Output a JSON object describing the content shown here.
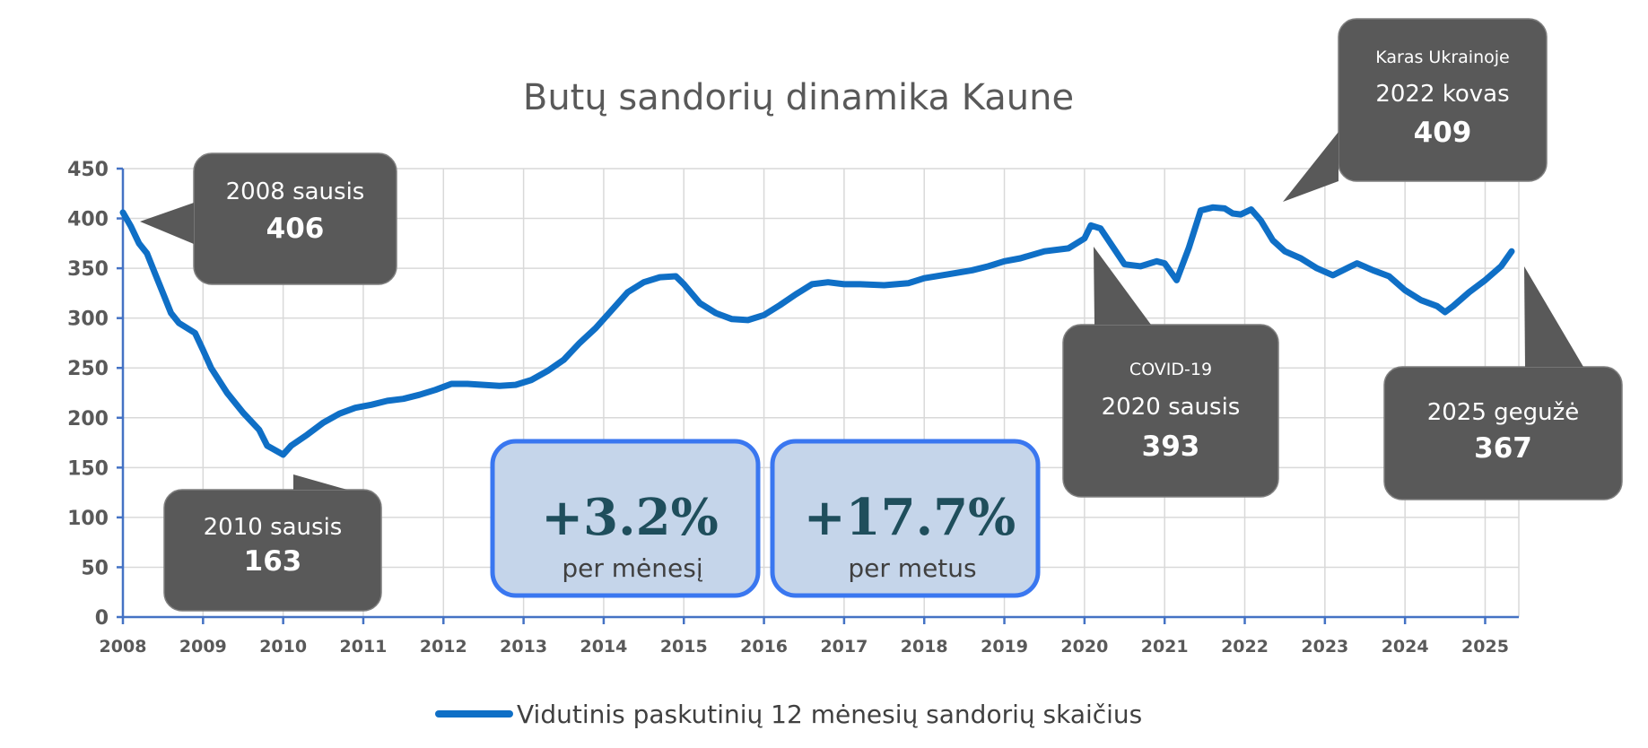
{
  "chart_data": {
    "type": "line",
    "title": "Butų sandorių dinamika Kaune",
    "xlabel": "",
    "ylabel": "",
    "xlim": [
      2008,
      2025.42
    ],
    "ylim": [
      0,
      450
    ],
    "grid": true,
    "y_ticks": [
      "0",
      "50",
      "100",
      "150",
      "200",
      "250",
      "300",
      "350",
      "400",
      "450"
    ],
    "x_ticks": [
      "2008",
      "2009",
      "2010",
      "2011",
      "2012",
      "2013",
      "2014",
      "2015",
      "2016",
      "2017",
      "2018",
      "2019",
      "2020",
      "2021",
      "2022",
      "2023",
      "2024",
      "2025"
    ],
    "legend": {
      "position": "bottom",
      "entries": [
        "Vidutinis paskutinių 12 mėnesių sandorių skaičius"
      ]
    },
    "series": [
      {
        "name": "Vidutinis paskutinių 12 mėnesių sandorių skaičius",
        "color": "#0f6fc6",
        "points": [
          [
            2008.0,
            406
          ],
          [
            2008.1,
            392
          ],
          [
            2008.2,
            375
          ],
          [
            2008.3,
            365
          ],
          [
            2008.4,
            345
          ],
          [
            2008.5,
            325
          ],
          [
            2008.6,
            305
          ],
          [
            2008.7,
            295
          ],
          [
            2008.9,
            285
          ],
          [
            2009.0,
            268
          ],
          [
            2009.1,
            250
          ],
          [
            2009.3,
            225
          ],
          [
            2009.5,
            205
          ],
          [
            2009.7,
            188
          ],
          [
            2009.8,
            172
          ],
          [
            2010.0,
            163
          ],
          [
            2010.1,
            172
          ],
          [
            2010.3,
            183
          ],
          [
            2010.5,
            195
          ],
          [
            2010.7,
            204
          ],
          [
            2010.9,
            210
          ],
          [
            2011.1,
            213
          ],
          [
            2011.3,
            217
          ],
          [
            2011.5,
            219
          ],
          [
            2011.7,
            223
          ],
          [
            2011.9,
            228
          ],
          [
            2012.1,
            234
          ],
          [
            2012.3,
            234
          ],
          [
            2012.5,
            233
          ],
          [
            2012.7,
            232
          ],
          [
            2012.9,
            233
          ],
          [
            2013.1,
            238
          ],
          [
            2013.3,
            247
          ],
          [
            2013.5,
            258
          ],
          [
            2013.7,
            275
          ],
          [
            2013.9,
            290
          ],
          [
            2014.1,
            308
          ],
          [
            2014.3,
            326
          ],
          [
            2014.5,
            336
          ],
          [
            2014.7,
            341
          ],
          [
            2014.9,
            342
          ],
          [
            2015.0,
            334
          ],
          [
            2015.2,
            315
          ],
          [
            2015.4,
            305
          ],
          [
            2015.6,
            299
          ],
          [
            2015.8,
            298
          ],
          [
            2016.0,
            303
          ],
          [
            2016.2,
            313
          ],
          [
            2016.4,
            324
          ],
          [
            2016.6,
            334
          ],
          [
            2016.8,
            336
          ],
          [
            2017.0,
            334
          ],
          [
            2017.2,
            334
          ],
          [
            2017.5,
            333
          ],
          [
            2017.8,
            335
          ],
          [
            2018.0,
            340
          ],
          [
            2018.3,
            344
          ],
          [
            2018.6,
            348
          ],
          [
            2018.8,
            352
          ],
          [
            2019.0,
            357
          ],
          [
            2019.2,
            360
          ],
          [
            2019.5,
            367
          ],
          [
            2019.8,
            370
          ],
          [
            2020.0,
            380
          ],
          [
            2020.08,
            393
          ],
          [
            2020.2,
            390
          ],
          [
            2020.35,
            372
          ],
          [
            2020.5,
            354
          ],
          [
            2020.7,
            352
          ],
          [
            2020.9,
            357
          ],
          [
            2021.0,
            355
          ],
          [
            2021.15,
            338
          ],
          [
            2021.3,
            370
          ],
          [
            2021.45,
            408
          ],
          [
            2021.6,
            411
          ],
          [
            2021.75,
            410
          ],
          [
            2021.85,
            405
          ],
          [
            2021.95,
            404
          ],
          [
            2022.08,
            409
          ],
          [
            2022.2,
            398
          ],
          [
            2022.35,
            378
          ],
          [
            2022.5,
            367
          ],
          [
            2022.7,
            360
          ],
          [
            2022.9,
            350
          ],
          [
            2023.1,
            343
          ],
          [
            2023.3,
            351
          ],
          [
            2023.4,
            355
          ],
          [
            2023.6,
            348
          ],
          [
            2023.8,
            342
          ],
          [
            2024.0,
            328
          ],
          [
            2024.2,
            318
          ],
          [
            2024.4,
            312
          ],
          [
            2024.5,
            306
          ],
          [
            2024.6,
            312
          ],
          [
            2024.8,
            326
          ],
          [
            2025.0,
            338
          ],
          [
            2025.2,
            352
          ],
          [
            2025.33,
            367
          ]
        ]
      }
    ],
    "annotations": [
      {
        "x": 2008.0,
        "y": 406,
        "lines": [
          "2008 sausis"
        ],
        "value": "406"
      },
      {
        "x": 2010.0,
        "y": 163,
        "lines": [
          "2010 sausis"
        ],
        "value": "163"
      },
      {
        "x": 2020.08,
        "y": 393,
        "small": "COVID-19",
        "lines": [
          "2020 sausis"
        ],
        "value": "393"
      },
      {
        "x": 2022.08,
        "y": 409,
        "small": "Karas Ukrainoje",
        "lines": [
          "2022 kovas"
        ],
        "value": "409"
      },
      {
        "x": 2025.33,
        "y": 367,
        "lines": [
          "2025 gegužė"
        ],
        "value": "367"
      }
    ],
    "stat_boxes": [
      {
        "value": "+3.2%",
        "label": "per mėnesį"
      },
      {
        "value": "+17.7%",
        "label": "per metus"
      }
    ]
  }
}
